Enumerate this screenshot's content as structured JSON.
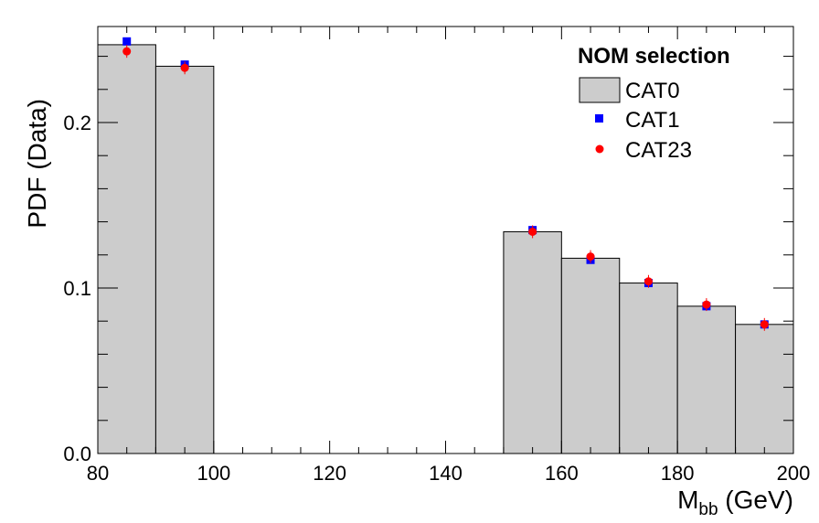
{
  "chart_data": {
    "type": "bar",
    "xlabel": "M",
    "xlabel_sub": "bb",
    "xlabel_unit": " (GeV)",
    "ylabel": "PDF (Data)",
    "xlim": [
      80,
      200
    ],
    "ylim": [
      0,
      0.258
    ],
    "x_ticks": [
      80,
      100,
      120,
      140,
      160,
      180,
      200
    ],
    "y_ticks": [
      0.0,
      0.1,
      0.2
    ],
    "y_tick_labels": [
      "0.0",
      "0.1",
      "0.2"
    ],
    "bins": [
      [
        80,
        90
      ],
      [
        90,
        100
      ],
      [
        150,
        160
      ],
      [
        160,
        170
      ],
      [
        170,
        180
      ],
      [
        180,
        190
      ],
      [
        190,
        200
      ]
    ],
    "legend": {
      "header": "NOM selection",
      "position": "top-right"
    },
    "series": [
      {
        "name": "CAT0",
        "style": "filled-histogram",
        "color": "#cccccc",
        "values": [
          0.247,
          0.234,
          0.134,
          0.118,
          0.103,
          0.089,
          0.078
        ]
      },
      {
        "name": "CAT1",
        "style": "square-marker",
        "color": "#0000ff",
        "x": [
          85,
          95,
          155,
          165,
          175,
          185,
          195
        ],
        "values": [
          0.249,
          0.235,
          0.135,
          0.117,
          0.103,
          0.089,
          0.078
        ]
      },
      {
        "name": "CAT23",
        "style": "circle-marker",
        "color": "#ff0000",
        "x": [
          85,
          95,
          155,
          165,
          175,
          185,
          195
        ],
        "values": [
          0.243,
          0.233,
          0.134,
          0.119,
          0.104,
          0.09,
          0.078
        ]
      }
    ]
  }
}
